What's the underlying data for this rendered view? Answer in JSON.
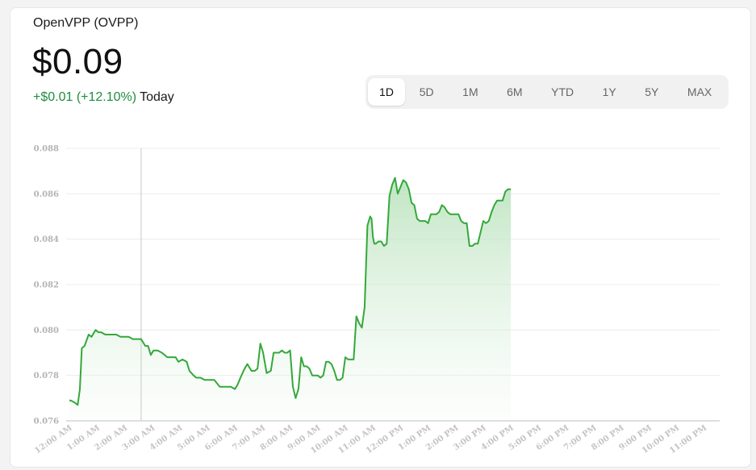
{
  "stock": {
    "name": "OpenVPP (OVPP)",
    "price": "$0.09",
    "change": "+$0.01 (+12.10%)",
    "period": "Today"
  },
  "ranges": [
    "1D",
    "5D",
    "1M",
    "6M",
    "YTD",
    "1Y",
    "5Y",
    "MAX"
  ],
  "active_range": "1D",
  "colors": {
    "line": "#34a83a",
    "fill_top": "#b9e2bc",
    "grid": "#ececec",
    "crosshair": "#c8c8c8"
  },
  "chart_data": {
    "type": "area",
    "ylim": [
      0.076,
      0.088
    ],
    "yticks": [
      "0.088",
      "0.086",
      "0.084",
      "0.082",
      "0.080",
      "0.078",
      "0.076"
    ],
    "xticks": [
      "12:00 AM",
      "1:00 AM",
      "2:00 AM",
      "3:00 AM",
      "4:00 AM",
      "5:00 AM",
      "6:00 AM",
      "7:00 AM",
      "8:00 AM",
      "9:00 AM",
      "10:00 AM",
      "11:00 AM",
      "12:00 PM",
      "1:00 PM",
      "2:00 PM",
      "3:00 PM",
      "4:00 PM",
      "5:00 PM",
      "6:00 PM",
      "7:00 PM",
      "8:00 PM",
      "9:00 PM",
      "10:00 PM",
      "11:00 PM"
    ],
    "crosshair_hour": 2.6,
    "series": [
      {
        "x": [
          0,
          0.05,
          0.2,
          0.3,
          0.38,
          0.45,
          0.55,
          0.7,
          0.8,
          0.95,
          1.05,
          1.15,
          1.3,
          1.45,
          1.55,
          1.7,
          1.85,
          2.0,
          2.15,
          2.3,
          2.45,
          2.6,
          2.75,
          2.85,
          2.95,
          3.05,
          3.2,
          3.35,
          3.45,
          3.55,
          3.7,
          3.85,
          3.95,
          4.1,
          4.25,
          4.35,
          4.5,
          4.6,
          4.75,
          4.9,
          5.1,
          5.25,
          5.45,
          5.55,
          5.7,
          5.85,
          6.0,
          6.1,
          6.2,
          6.35,
          6.45,
          6.6,
          6.72,
          6.82,
          6.92,
          7.02,
          7.15,
          7.3,
          7.4,
          7.5,
          7.6,
          7.7,
          7.8,
          7.9,
          8.0,
          8.1,
          8.2,
          8.3,
          8.4,
          8.5,
          8.6,
          8.7,
          8.8,
          8.9,
          9.0,
          9.1,
          9.2,
          9.3,
          9.4,
          9.5,
          9.6,
          9.7,
          9.8,
          9.9,
          10.0,
          10.1,
          10.2,
          10.3,
          10.4,
          10.5,
          10.6,
          10.7,
          10.8,
          10.9,
          10.95,
          11.0,
          11.05,
          11.1,
          11.2,
          11.3,
          11.4,
          11.5,
          11.6,
          11.7,
          11.8,
          11.9,
          12.0,
          12.1,
          12.2,
          12.3,
          12.4,
          12.5,
          12.6,
          12.7,
          12.8,
          12.9,
          13.0,
          13.1,
          13.2,
          13.3,
          13.4,
          13.5,
          13.6,
          13.7,
          13.8,
          13.9,
          14.0,
          14.1,
          14.2,
          14.3,
          14.4,
          14.5,
          14.6,
          14.7,
          14.8,
          14.9,
          15.0,
          15.1,
          15.2,
          15.3,
          15.4,
          15.5,
          15.6,
          15.7,
          15.8,
          15.9,
          16.0
        ],
        "values": [
          0.0769,
          0.0769,
          0.0768,
          0.0767,
          0.0774,
          0.0792,
          0.0793,
          0.0798,
          0.0797,
          0.08,
          0.0799,
          0.0799,
          0.0798,
          0.0798,
          0.0798,
          0.0798,
          0.0797,
          0.0797,
          0.0797,
          0.0796,
          0.0796,
          0.0796,
          0.0793,
          0.0793,
          0.0789,
          0.0791,
          0.0791,
          0.079,
          0.0789,
          0.0788,
          0.0788,
          0.0788,
          0.0786,
          0.0787,
          0.0786,
          0.0782,
          0.078,
          0.0779,
          0.0779,
          0.0778,
          0.0778,
          0.0778,
          0.0775,
          0.0775,
          0.0775,
          0.0775,
          0.0774,
          0.0776,
          0.0779,
          0.0783,
          0.0785,
          0.0782,
          0.0782,
          0.0783,
          0.0794,
          0.079,
          0.0781,
          0.0782,
          0.079,
          0.079,
          0.079,
          0.0791,
          0.079,
          0.079,
          0.0791,
          0.0775,
          0.077,
          0.0774,
          0.0788,
          0.0784,
          0.0784,
          0.0783,
          0.078,
          0.078,
          0.078,
          0.0779,
          0.078,
          0.0786,
          0.0786,
          0.0785,
          0.0782,
          0.0778,
          0.0778,
          0.0779,
          0.0788,
          0.0787,
          0.0787,
          0.0787,
          0.0806,
          0.0803,
          0.0801,
          0.081,
          0.0846,
          0.085,
          0.0849,
          0.0841,
          0.0838,
          0.0838,
          0.0839,
          0.0839,
          0.0837,
          0.0838,
          0.0859,
          0.0864,
          0.0867,
          0.086,
          0.0863,
          0.0866,
          0.0865,
          0.0862,
          0.0856,
          0.0855,
          0.0849,
          0.0848,
          0.0848,
          0.0848,
          0.0847,
          0.0851,
          0.0851,
          0.0851,
          0.0852,
          0.0855,
          0.0854,
          0.0852,
          0.0851,
          0.0851,
          0.0851,
          0.0851,
          0.0848,
          0.0847,
          0.0847,
          0.0837,
          0.0837,
          0.0838,
          0.0838,
          0.0843,
          0.0848,
          0.0847,
          0.0848,
          0.0852,
          0.0855,
          0.0857,
          0.0857,
          0.0857,
          0.0861,
          0.0862,
          0.0862
        ]
      }
    ]
  }
}
